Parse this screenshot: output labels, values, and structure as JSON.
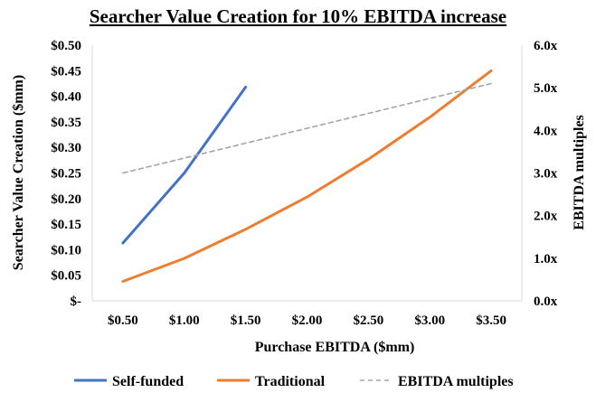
{
  "chart_data": {
    "type": "line",
    "title": "Searcher Value Creation for 10% EBITDA increase",
    "xlabel": "Purchase EBITDA ($mm)",
    "ylabel": "Searcher Value Creation ($mm)",
    "y2label": "EBITDA multiples",
    "categories": [
      "$0.50",
      "$1.00",
      "$1.50",
      "$2.00",
      "$2.50",
      "$3.00",
      "$3.50"
    ],
    "x": [
      0.5,
      1.0,
      1.5,
      2.0,
      2.5,
      3.0,
      3.5
    ],
    "ylim": [
      0,
      0.5
    ],
    "y_ticks": [
      "$-",
      "$0.05",
      "$0.10",
      "$0.15",
      "$0.20",
      "$0.25",
      "$0.30",
      "$0.35",
      "$0.40",
      "$0.45",
      "$0.50"
    ],
    "y2lim": [
      0,
      6
    ],
    "y2_ticks": [
      "0.0x",
      "1.0x",
      "2.0x",
      "3.0x",
      "4.0x",
      "5.0x",
      "6.0x"
    ],
    "grid": false,
    "legend_position": "bottom",
    "series": [
      {
        "name": "Self-funded",
        "axis": "left",
        "style": "solid",
        "color": "#4472C4",
        "x": [
          0.5,
          1.0,
          1.5
        ],
        "values": [
          0.113,
          0.25,
          0.418
        ]
      },
      {
        "name": "Traditional",
        "axis": "left",
        "style": "solid",
        "color": "#ED7D31",
        "x": [
          0.5,
          1.0,
          1.5,
          2.0,
          2.5,
          3.0,
          3.5
        ],
        "values": [
          0.038,
          0.083,
          0.14,
          0.203,
          0.277,
          0.359,
          0.45
        ]
      },
      {
        "name": "EBITDA multiples",
        "axis": "right",
        "style": "dashed",
        "color": "#A5A5A5",
        "x": [
          0.5,
          1.0,
          1.5,
          2.0,
          2.5,
          3.0,
          3.5
        ],
        "values": [
          3.0,
          3.35,
          3.7,
          4.05,
          4.4,
          4.75,
          5.1
        ]
      }
    ]
  }
}
